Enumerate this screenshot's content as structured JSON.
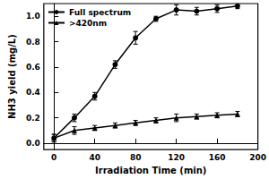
{
  "chart_data": {
    "type": "line",
    "x_label": "Irradiation Time (min)",
    "y_label": "NH3 yield (mg/L)",
    "xlim": [
      -10,
      200
    ],
    "xticks": [
      0,
      40,
      80,
      120,
      160,
      200
    ],
    "ylim": [
      -0.05,
      1.1
    ],
    "yticks": [
      {
        "value": 0,
        "label": "0.0"
      },
      {
        "value": 0.2,
        "label": "0.2"
      },
      {
        "value": 0.4,
        "label": "0.4"
      },
      {
        "value": 0.6,
        "label": "0.6"
      },
      {
        "value": 0.8,
        "label": "0.8"
      },
      {
        "value": 1.0,
        "label": "1.0"
      }
    ],
    "grid": false,
    "legend": "upper left",
    "x": [
      0,
      20,
      40,
      60,
      80,
      100,
      120,
      140,
      160,
      180
    ],
    "series": [
      {
        "name": "Full spectrum",
        "color": "#000000",
        "marker": "circle",
        "values": [
          0.04,
          0.2,
          0.37,
          0.62,
          0.83,
          0.98,
          1.05,
          1.04,
          1.06,
          1.08
        ],
        "errors": [
          0.03,
          0.03,
          0.03,
          0.03,
          0.05,
          0.02,
          0.04,
          0.03,
          0.03,
          0.02
        ]
      },
      {
        "name": ">420nm",
        "color": "#000000",
        "marker": "triangle",
        "values": [
          0.04,
          0.1,
          0.12,
          0.14,
          0.16,
          0.18,
          0.2,
          0.21,
          0.22,
          0.23
        ],
        "errors": [
          0.03,
          0.03,
          0.02,
          0.02,
          0.02,
          0.02,
          0.03,
          0.02,
          0.02,
          0.02
        ]
      }
    ]
  }
}
